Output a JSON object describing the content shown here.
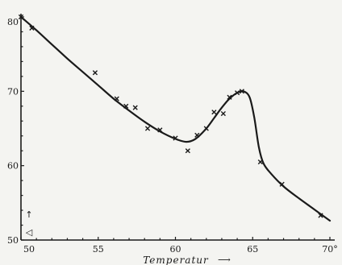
{
  "chart_data": {
    "type": "scatter",
    "xlabel": "Temperatur",
    "xlabel_arrow": "⟶",
    "ylabel_symbol": "↑",
    "ylabel_glyph": "◁",
    "xlim": [
      50,
      70
    ],
    "ylim": [
      50,
      80
    ],
    "x_ticks": [
      {
        "value": 50,
        "label": "50"
      },
      {
        "value": 55,
        "label": "55"
      },
      {
        "value": 60,
        "label": "60"
      },
      {
        "value": 65,
        "label": "65"
      },
      {
        "value": 70,
        "label": "70°"
      }
    ],
    "y_ticks": [
      {
        "value": 50,
        "label": "50"
      },
      {
        "value": 60,
        "label": "60"
      },
      {
        "value": 70,
        "label": "70"
      },
      {
        "value": 80,
        "label": "80"
      }
    ],
    "grid": false,
    "colors": {
      "ink": "#1a1a1a",
      "paper": "#f4f4f1"
    },
    "points": [
      {
        "x": 50.0,
        "y": 80.0
      },
      {
        "x": 50.7,
        "y": 78.5
      },
      {
        "x": 54.8,
        "y": 72.5
      },
      {
        "x": 56.2,
        "y": 69.0
      },
      {
        "x": 56.8,
        "y": 68.0
      },
      {
        "x": 57.4,
        "y": 67.8
      },
      {
        "x": 58.2,
        "y": 65.0
      },
      {
        "x": 59.0,
        "y": 64.8
      },
      {
        "x": 60.0,
        "y": 63.7
      },
      {
        "x": 60.8,
        "y": 62.0
      },
      {
        "x": 61.4,
        "y": 64.1
      },
      {
        "x": 62.0,
        "y": 65.0
      },
      {
        "x": 62.5,
        "y": 67.2
      },
      {
        "x": 63.1,
        "y": 67.0
      },
      {
        "x": 63.5,
        "y": 69.2
      },
      {
        "x": 64.0,
        "y": 69.8
      },
      {
        "x": 64.3,
        "y": 70.0
      },
      {
        "x": 65.5,
        "y": 60.5
      },
      {
        "x": 66.9,
        "y": 57.5
      },
      {
        "x": 69.4,
        "y": 53.3
      }
    ],
    "curve": [
      [
        50.0,
        80.0
      ],
      [
        51.0,
        78.2
      ],
      [
        52.0,
        76.3
      ],
      [
        53.0,
        74.4
      ],
      [
        54.0,
        72.6
      ],
      [
        55.0,
        70.8
      ],
      [
        56.0,
        69.0
      ],
      [
        57.0,
        67.4
      ],
      [
        58.0,
        65.9
      ],
      [
        59.0,
        64.6
      ],
      [
        60.0,
        63.6
      ],
      [
        60.7,
        63.2
      ],
      [
        61.3,
        63.6
      ],
      [
        62.0,
        65.0
      ],
      [
        62.5,
        66.4
      ],
      [
        63.0,
        67.8
      ],
      [
        63.5,
        69.0
      ],
      [
        64.0,
        69.8
      ],
      [
        64.4,
        70.0
      ],
      [
        64.8,
        69.2
      ],
      [
        65.1,
        66.5
      ],
      [
        65.4,
        62.5
      ],
      [
        65.7,
        60.3
      ],
      [
        66.2,
        58.9
      ],
      [
        67.0,
        57.2
      ],
      [
        68.0,
        55.6
      ],
      [
        69.0,
        54.1
      ],
      [
        70.0,
        52.6
      ]
    ]
  }
}
